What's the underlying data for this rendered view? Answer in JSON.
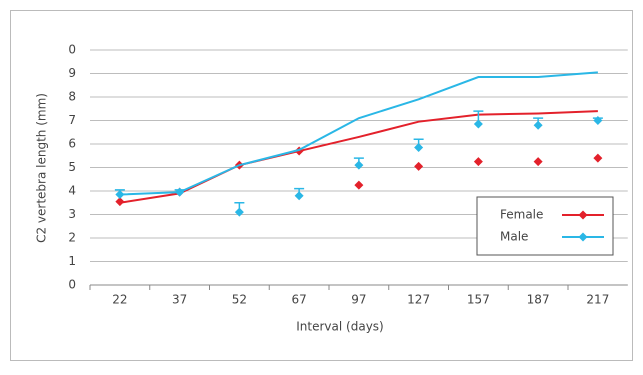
{
  "chart_data": {
    "type": "line-markers",
    "x_label": "Interval (days)",
    "y_label": "C2 vertebra length (mm)",
    "categories": [
      "22",
      "37",
      "52",
      "67",
      "97",
      "127",
      "157",
      "187",
      "217"
    ],
    "ylim": [
      0,
      10
    ],
    "yticks": [
      0,
      1,
      2,
      3,
      4,
      5,
      6,
      7,
      8,
      9,
      {
        "value": 10,
        "label": "0"
      }
    ],
    "grid": true,
    "legend": "lower-right",
    "series": [
      {
        "name": "Female",
        "color": "#e3212b",
        "values": [
          3.55,
          3.95,
          5.1,
          5.7,
          4.25,
          5.05,
          5.25,
          5.25,
          5.4
        ],
        "trend": [
          3.5,
          3.9,
          5.1,
          5.7,
          6.3,
          6.95,
          7.25,
          7.3,
          7.4
        ]
      },
      {
        "name": "Male",
        "color": "#2ab7e6",
        "values": [
          3.85,
          3.95,
          3.1,
          3.8,
          5.1,
          5.85,
          6.85,
          6.8,
          7.0
        ],
        "errors": [
          0.2,
          0.1,
          0.4,
          0.3,
          0.3,
          0.35,
          0.55,
          0.3,
          0.1
        ],
        "trend": [
          3.85,
          3.95,
          5.1,
          5.75,
          7.1,
          7.9,
          8.85,
          8.85,
          9.05
        ]
      }
    ]
  }
}
